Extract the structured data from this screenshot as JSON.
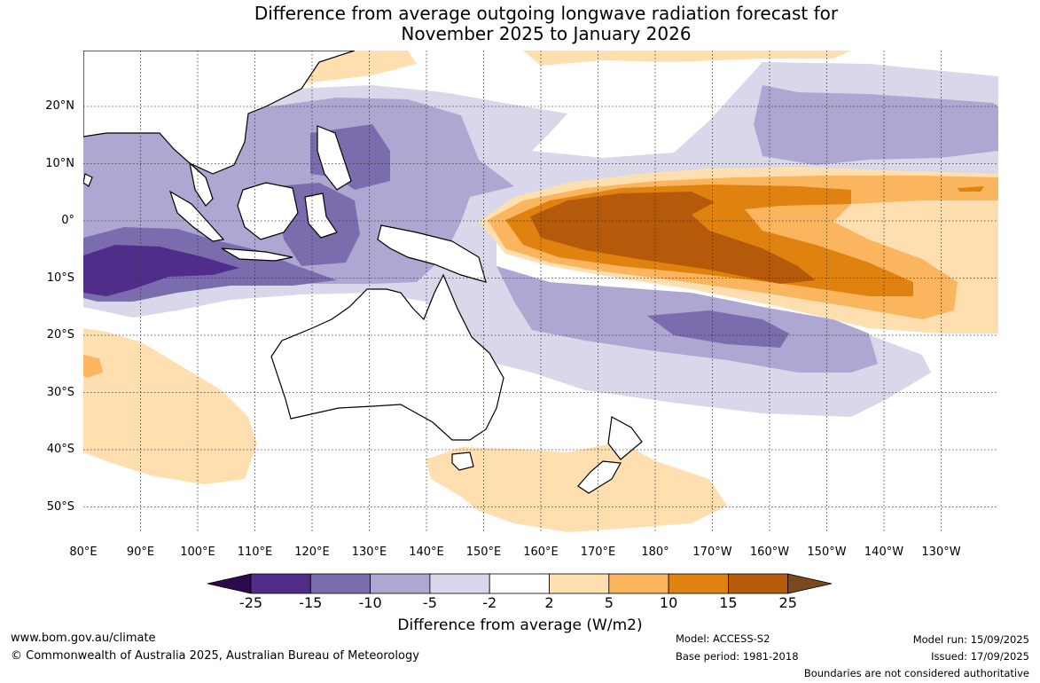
{
  "title": {
    "line1": "Difference from average outgoing longwave radiation forecast for",
    "line2": "November 2025 to January 2026"
  },
  "map": {
    "longitude_labels": [
      "80°E",
      "90°E",
      "100°E",
      "110°E",
      "120°E",
      "130°E",
      "140°E",
      "150°E",
      "160°E",
      "170°E",
      "180°",
      "170°W",
      "160°W",
      "150°W",
      "140°W",
      "130°W"
    ],
    "latitude_labels": [
      "20°N",
      "10°N",
      "0°",
      "10°S",
      "20°S",
      "30°S",
      "40°S",
      "50°S"
    ],
    "colors": {
      "p25": "#7a4a1f",
      "p15": "#b45a0a",
      "p10": "#e0820f",
      "p5": "#fbb55e",
      "p2": "#ffdfb0",
      "n2": "#d8d8ea",
      "n5": "#aea7d2",
      "n10": "#7b6dad",
      "n15": "#512d8a",
      "n25": "#2d0a4e",
      "land": "#ffffff",
      "coast": "#000000"
    }
  },
  "colorbar": {
    "ticks": [
      "-25",
      "-15",
      "-10",
      "-5",
      "-2",
      "2",
      "5",
      "10",
      "15",
      "25"
    ],
    "label": "Difference from average (W/m2)"
  },
  "footer": {
    "website": "www.bom.gov.au/climate",
    "copyright": "© Commonwealth of Australia 2025, Australian Bureau of Meteorology",
    "model": "Model: ACCESS-S2",
    "base_period": "Base period: 1981-2018",
    "model_run": "Model run: 15/09/2025",
    "issued": "Issued: 17/09/2025",
    "disclaimer": "Boundaries are not considered authoritative"
  }
}
